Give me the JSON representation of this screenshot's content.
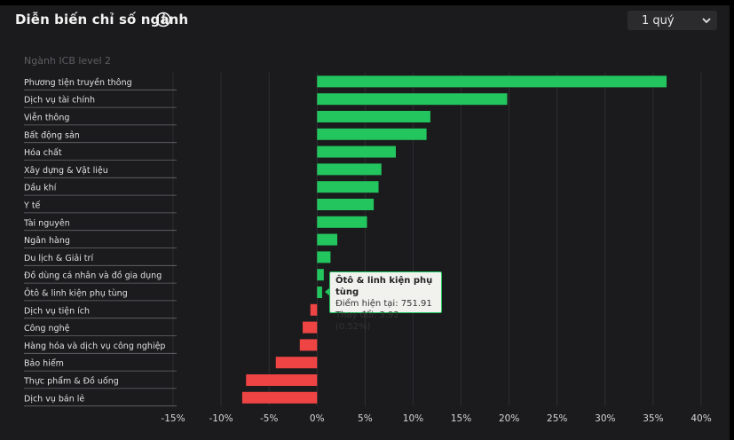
{
  "header": {
    "title": "Diễn biến chỉ số ngành",
    "period_select": "1 quý"
  },
  "colors": {
    "positive": "#22c55e",
    "negative": "#ef4444",
    "grid": "#2e2e31"
  },
  "tooltip": {
    "title": "Ôtô & linh kiện phụ tùng",
    "line1": "Điểm hiện tại: 751.91",
    "line2": "Thay đổi: 3.92 (0.52%)"
  },
  "chart_data": {
    "type": "bar",
    "orientation": "horizontal",
    "category_header": "Ngành ICB level 2",
    "categories": [
      "Phương tiện truyền thông",
      "Dịch vụ tài chính",
      "Viễn thông",
      "Bất động sản",
      "Hóa chất",
      "Xây dựng & Vật liệu",
      "Dầu khí",
      "Y tế",
      "Tài nguyên",
      "Ngân hàng",
      "Du lịch & Giải trí",
      "Đồ dùng cá nhân và đồ gia dụng",
      "Ôtô & linh kiện phụ tùng",
      "Dịch vụ tiện ích",
      "Công nghệ",
      "Hàng hóa và dịch vụ công nghiệp",
      "Bảo hiểm",
      "Thực phẩm & Đồ uống",
      "Dịch vụ bán lẻ"
    ],
    "values": [
      36.4,
      19.8,
      11.8,
      11.4,
      8.2,
      6.7,
      6.4,
      5.9,
      5.2,
      2.1,
      1.4,
      0.7,
      0.52,
      -0.7,
      -1.5,
      -1.8,
      -4.3,
      -7.4,
      -7.8
    ],
    "xlim": [
      -15,
      40
    ],
    "ticks": [
      -15,
      -10,
      -5,
      0,
      5,
      10,
      15,
      20,
      25,
      30,
      35,
      40
    ],
    "tick_labels": [
      "-15%",
      "-10%",
      "-5%",
      "0%",
      "5%",
      "10%",
      "15%",
      "20%",
      "25%",
      "30%",
      "35%",
      "40%"
    ],
    "grid": true
  }
}
